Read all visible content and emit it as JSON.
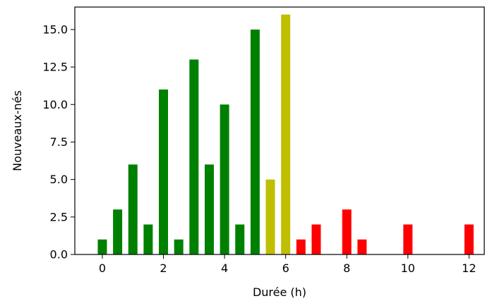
{
  "chart_data": {
    "type": "bar",
    "title": "",
    "xlabel": "Durée (h)",
    "ylabel": "Nouveaux-nés",
    "xlim": [
      -0.9,
      12.5
    ],
    "ylim": [
      0,
      16.5
    ],
    "xticks": [
      0,
      2,
      4,
      6,
      8,
      10,
      12
    ],
    "yticks": [
      0.0,
      2.5,
      5.0,
      7.5,
      10.0,
      12.5,
      15.0
    ],
    "ytick_labels": [
      "0.0",
      "2.5",
      "5.0",
      "7.5",
      "10.0",
      "12.5",
      "15.0"
    ],
    "grid": false,
    "bar_width": 0.3,
    "colors": {
      "green": "#008000",
      "yellow": "#bfbf00",
      "red": "#ff0000"
    },
    "bars": [
      {
        "x": 0.0,
        "value": 1,
        "color": "green"
      },
      {
        "x": 0.5,
        "value": 3,
        "color": "green"
      },
      {
        "x": 1.0,
        "value": 6,
        "color": "green"
      },
      {
        "x": 1.5,
        "value": 2,
        "color": "green"
      },
      {
        "x": 2.0,
        "value": 11,
        "color": "green"
      },
      {
        "x": 2.5,
        "value": 1,
        "color": "green"
      },
      {
        "x": 3.0,
        "value": 13,
        "color": "green"
      },
      {
        "x": 3.5,
        "value": 6,
        "color": "green"
      },
      {
        "x": 4.0,
        "value": 10,
        "color": "green"
      },
      {
        "x": 4.5,
        "value": 2,
        "color": "green"
      },
      {
        "x": 5.0,
        "value": 15,
        "color": "green"
      },
      {
        "x": 5.5,
        "value": 5,
        "color": "yellow"
      },
      {
        "x": 6.0,
        "value": 16,
        "color": "yellow"
      },
      {
        "x": 6.5,
        "value": 1,
        "color": "red"
      },
      {
        "x": 7.0,
        "value": 2,
        "color": "red"
      },
      {
        "x": 8.0,
        "value": 3,
        "color": "red"
      },
      {
        "x": 8.5,
        "value": 1,
        "color": "red"
      },
      {
        "x": 10.0,
        "value": 2,
        "color": "red"
      },
      {
        "x": 12.0,
        "value": 2,
        "color": "red"
      }
    ]
  }
}
